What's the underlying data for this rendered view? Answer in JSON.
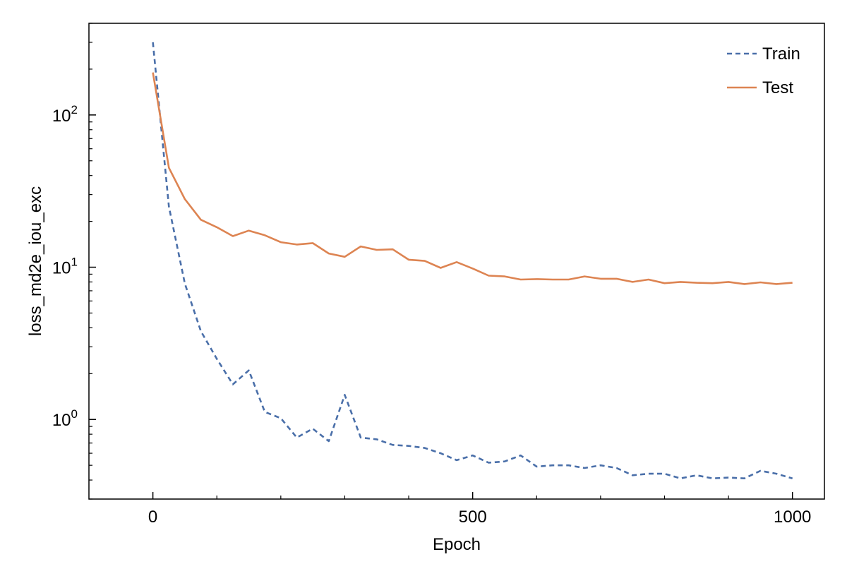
{
  "chart_data": {
    "type": "line",
    "xlabel": "Epoch",
    "ylabel": "loss_md2e_iou_exc",
    "y_scale": "log",
    "xlim": [
      -100,
      1050
    ],
    "ylim": [
      0.3,
      400
    ],
    "x_ticks": [
      0,
      500,
      1000
    ],
    "x_tick_labels": [
      "0",
      "500",
      "1000"
    ],
    "y_ticks": [
      {
        "value": 1,
        "base": "10",
        "exp": "0"
      },
      {
        "value": 10,
        "base": "10",
        "exp": "1"
      },
      {
        "value": 100,
        "base": "10",
        "exp": "2"
      }
    ],
    "grid": false,
    "legend_position": "top-right",
    "series": [
      {
        "name": "Train",
        "color": "#4a6fa9",
        "style": "dashed",
        "x": [
          0,
          25,
          50,
          75,
          100,
          125,
          150,
          175,
          200,
          225,
          250,
          275,
          300,
          325,
          350,
          375,
          400,
          425,
          450,
          475,
          500,
          525,
          550,
          575,
          600,
          625,
          650,
          675,
          700,
          725,
          750,
          775,
          800,
          825,
          850,
          875,
          900,
          925,
          950,
          975,
          1000
        ],
        "y": [
          300,
          25,
          7.8,
          3.8,
          2.5,
          1.7,
          2.1,
          1.12,
          1.02,
          0.76,
          0.87,
          0.72,
          1.45,
          0.76,
          0.74,
          0.68,
          0.67,
          0.65,
          0.6,
          0.54,
          0.58,
          0.52,
          0.53,
          0.58,
          0.49,
          0.5,
          0.5,
          0.48,
          0.5,
          0.48,
          0.43,
          0.44,
          0.44,
          0.41,
          0.43,
          0.41,
          0.415,
          0.41,
          0.46,
          0.44,
          0.41
        ]
      },
      {
        "name": "Test",
        "color": "#dd8452",
        "style": "solid",
        "x": [
          0,
          25,
          50,
          75,
          100,
          125,
          150,
          175,
          200,
          225,
          250,
          275,
          300,
          325,
          350,
          375,
          400,
          425,
          450,
          475,
          500,
          525,
          550,
          575,
          600,
          625,
          650,
          675,
          700,
          725,
          750,
          775,
          800,
          825,
          850,
          875,
          900,
          925,
          950,
          975,
          1000
        ],
        "y": [
          190,
          45,
          28,
          20.5,
          18.3,
          16,
          17.4,
          16.2,
          14.6,
          14.1,
          14.4,
          12.3,
          11.7,
          13.7,
          13.0,
          13.1,
          11.2,
          11.0,
          9.9,
          10.8,
          9.8,
          8.8,
          8.7,
          8.3,
          8.35,
          8.3,
          8.3,
          8.7,
          8.4,
          8.4,
          8.0,
          8.3,
          7.85,
          8.0,
          7.9,
          7.85,
          8.0,
          7.75,
          7.95,
          7.75,
          7.9
        ]
      }
    ]
  }
}
